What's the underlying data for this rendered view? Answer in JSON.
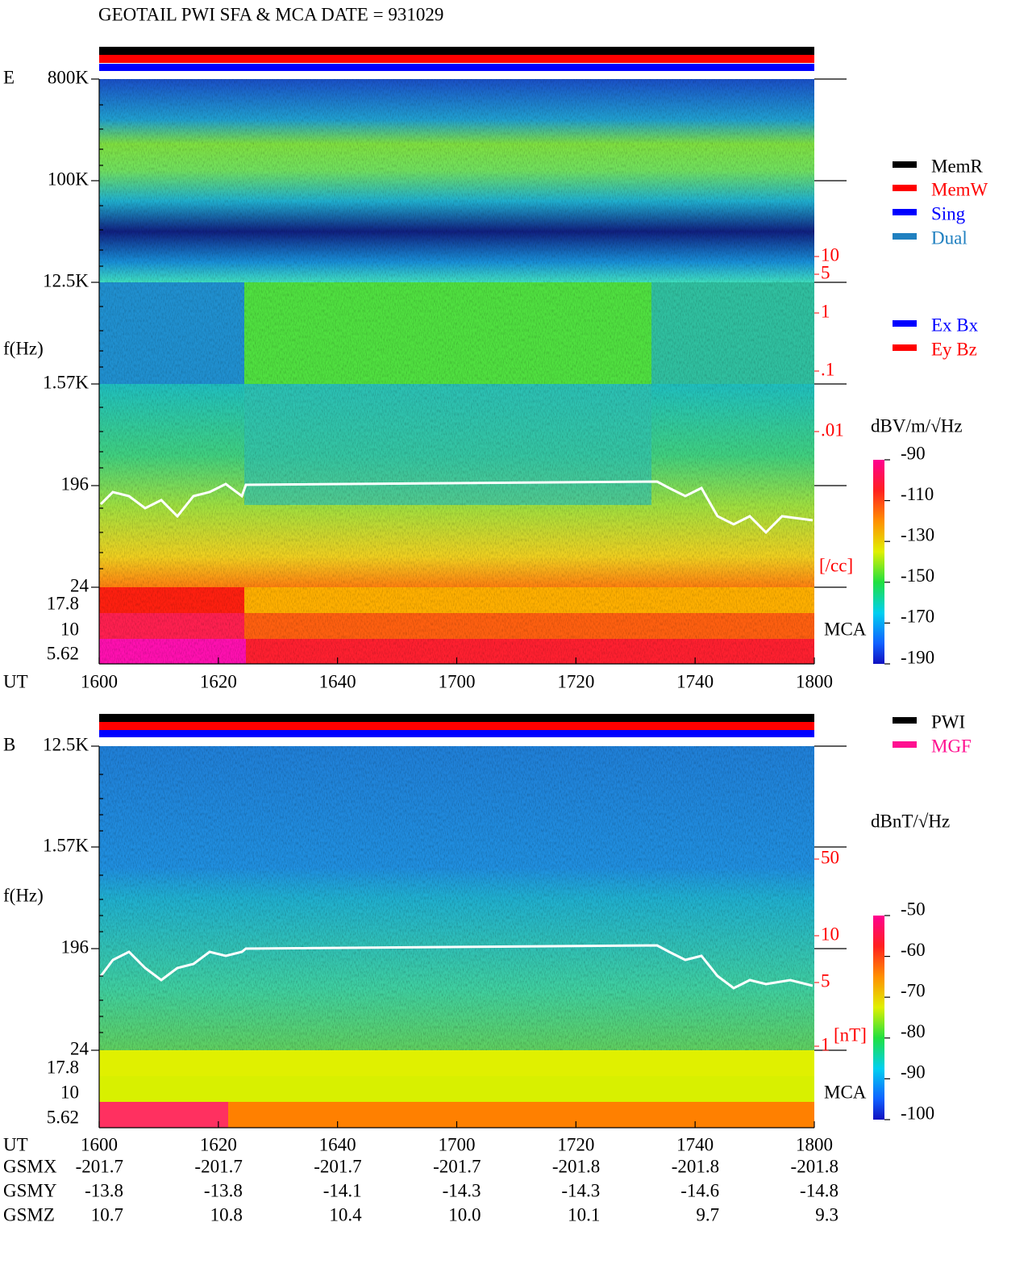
{
  "title": "GEOTAIL  PWI SFA & MCA   DATE = 931029",
  "panel_e": {
    "label": "E",
    "freq_ticks": [
      "800K",
      "100K",
      "12.5K",
      "1.57K",
      "196",
      "24"
    ],
    "mca_ticks": [
      "17.8",
      "10",
      "5.62"
    ],
    "y_label": "f(Hz)",
    "mca_label": "MCA",
    "density_ticks": [
      "10",
      "5",
      "1",
      ".1",
      ".01"
    ],
    "density_unit": "[/cc]",
    "x_label": "UT",
    "x_ticks": [
      "1600",
      "1620",
      "1640",
      "1700",
      "1720",
      "1740",
      "1800"
    ],
    "legend_status": [
      {
        "name": "MemR",
        "color": "#000000"
      },
      {
        "name": "MemW",
        "color": "#ff0000"
      },
      {
        "name": "Sing",
        "color": "#0000ff"
      },
      {
        "name": "Dual",
        "color": "#2080c0"
      }
    ],
    "legend_axis": [
      {
        "name": "Ex Bx",
        "color": "#0000ff"
      },
      {
        "name": "Ey Bz",
        "color": "#ff0000"
      }
    ],
    "colorbar_unit": "dBV/m/√Hz",
    "colorbar_ticks": [
      "-90",
      "-110",
      "-130",
      "-150",
      "-170",
      "-190"
    ]
  },
  "panel_b": {
    "label": "B",
    "freq_ticks": [
      "12.5K",
      "1.57K",
      "196",
      "24"
    ],
    "mca_ticks": [
      "17.8",
      "10",
      "5.62"
    ],
    "y_label": "f(Hz)",
    "mca_label": "MCA",
    "field_ticks": [
      "50",
      "10",
      "5",
      "1"
    ],
    "field_unit": "[nT]",
    "x_label": "UT",
    "x_ticks": [
      "1600",
      "1620",
      "1640",
      "1700",
      "1720",
      "1740",
      "1800"
    ],
    "legend_status": [
      {
        "name": "PWI",
        "color": "#000000"
      },
      {
        "name": "MGF",
        "color": "#ff1090"
      }
    ],
    "colorbar_unit": "dBnT/√Hz",
    "colorbar_ticks": [
      "-50",
      "-60",
      "-70",
      "-80",
      "-90",
      "-100"
    ]
  },
  "position": {
    "rows": [
      {
        "name": "GSMX",
        "values": [
          "-201.7",
          "-201.7",
          "-201.7",
          "-201.7",
          "-201.8",
          "-201.8",
          "-201.8"
        ]
      },
      {
        "name": "GSMY",
        "values": [
          "-13.8",
          "-13.8",
          "-14.1",
          "-14.3",
          "-14.3",
          "-14.6",
          "-14.8"
        ]
      },
      {
        "name": "GSMZ",
        "values": [
          "10.7",
          "10.8",
          "10.4",
          "10.0",
          "10.1",
          "9.7",
          "9.3"
        ]
      }
    ]
  }
}
